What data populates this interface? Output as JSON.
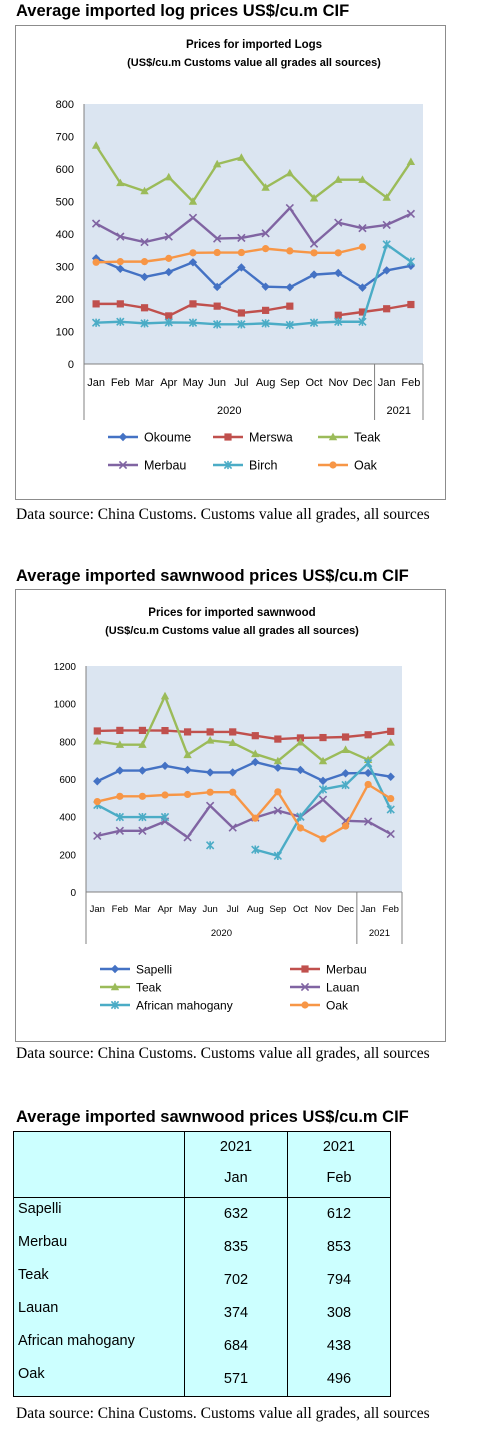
{
  "sections": [
    {
      "heading": "Average imported log prices US$/cu.m CIF",
      "source": "Data source: China Customs. Customs value all grades, all sources"
    },
    {
      "heading": "Average imported sawnwood prices US$/cu.m CIF",
      "source": "Data source: China Customs. Customs value all grades, all sources"
    },
    {
      "heading": "Average imported sawnwood prices US$/cu.m CIF",
      "source": "Data source: China Customs. Customs value all grades, all sources"
    }
  ],
  "chart_data": [
    {
      "type": "line",
      "title": "Prices for imported Logs",
      "subtitle": "(US$/cu.m Customs value all grades all sources)",
      "categories": [
        "Jan",
        "Feb",
        "Mar",
        "Apr",
        "May",
        "Jun",
        "Jul",
        "Aug",
        "Sep",
        "Oct",
        "Nov",
        "Dec",
        "Jan",
        "Feb"
      ],
      "year_groups": [
        {
          "label": "2020",
          "count": 12
        },
        {
          "label": "2021",
          "count": 2
        }
      ],
      "ylim": [
        0,
        800
      ],
      "yticks": [
        "0",
        "100",
        "200",
        "300",
        "400",
        "500",
        "600",
        "700",
        "800"
      ],
      "grid": false,
      "legend_position": "bottom",
      "legend_columns": 3,
      "series": [
        {
          "name": "Okoume",
          "color": "#4472c4",
          "marker": "diamond",
          "values": [
            325,
            293,
            268,
            283,
            313,
            237,
            297,
            238,
            236,
            275,
            280,
            235,
            288,
            302
          ]
        },
        {
          "name": "Merswa",
          "color": "#c0504d",
          "marker": "square",
          "values": [
            185,
            185,
            173,
            148,
            185,
            178,
            157,
            165,
            178,
            null,
            150,
            160,
            170,
            183
          ]
        },
        {
          "name": "Teak",
          "color": "#9bbb59",
          "marker": "triangle",
          "values": [
            672,
            557,
            532,
            575,
            500,
            615,
            635,
            543,
            587,
            510,
            567,
            567,
            512,
            622
          ]
        },
        {
          "name": "Merbau",
          "color": "#8064a2",
          "marker": "x",
          "values": [
            432,
            392,
            375,
            392,
            450,
            386,
            388,
            402,
            480,
            370,
            435,
            418,
            428,
            462
          ]
        },
        {
          "name": "Birch",
          "color": "#4bacc6",
          "marker": "star",
          "values": [
            127,
            130,
            125,
            128,
            127,
            122,
            122,
            125,
            120,
            127,
            130,
            130,
            368,
            315
          ]
        },
        {
          "name": "Oak",
          "color": "#f79646",
          "marker": "circle",
          "values": [
            313,
            315,
            315,
            325,
            342,
            343,
            343,
            355,
            348,
            342,
            342,
            360,
            null,
            null
          ]
        }
      ]
    },
    {
      "type": "line",
      "title": "Prices for imported sawnwood",
      "subtitle": "(US$/cu.m Customs value all grades all sources)",
      "categories": [
        "Jan",
        "Feb",
        "Mar",
        "Apr",
        "May",
        "Jun",
        "Jul",
        "Aug",
        "Sep",
        "Oct",
        "Nov",
        "Dec",
        "Jan",
        "Feb"
      ],
      "year_groups": [
        {
          "label": "2020",
          "count": 12
        },
        {
          "label": "2021",
          "count": 2
        }
      ],
      "ylim": [
        0,
        1200
      ],
      "yticks": [
        "0",
        "200",
        "400",
        "600",
        "800",
        "1000",
        "1200"
      ],
      "grid": false,
      "legend_position": "bottom",
      "legend_columns": 2,
      "series": [
        {
          "name": "Sapelli",
          "color": "#4472c4",
          "marker": "diamond",
          "values": [
            588,
            645,
            645,
            670,
            648,
            635,
            635,
            690,
            660,
            648,
            590,
            630,
            632,
            612
          ]
        },
        {
          "name": "Merbau",
          "color": "#c0504d",
          "marker": "square",
          "values": [
            855,
            858,
            858,
            857,
            850,
            850,
            850,
            830,
            812,
            818,
            820,
            823,
            835,
            853
          ]
        },
        {
          "name": "Teak",
          "color": "#9bbb59",
          "marker": "triangle",
          "values": [
            800,
            782,
            782,
            1040,
            728,
            805,
            792,
            733,
            695,
            795,
            695,
            755,
            702,
            794
          ]
        },
        {
          "name": "Lauan",
          "color": "#8064a2",
          "marker": "x",
          "values": [
            298,
            325,
            325,
            375,
            290,
            458,
            342,
            395,
            432,
            400,
            490,
            378,
            374,
            308
          ]
        },
        {
          "name": "African mahogany",
          "color": "#4bacc6",
          "marker": "star",
          "values": [
            462,
            398,
            398,
            398,
            null,
            248,
            null,
            225,
            192,
            400,
            545,
            568,
            684,
            438
          ]
        },
        {
          "name": "Oak",
          "color": "#f79646",
          "marker": "circle",
          "values": [
            480,
            508,
            508,
            515,
            518,
            530,
            530,
            392,
            532,
            340,
            282,
            350,
            571,
            496
          ]
        }
      ]
    },
    {
      "type": "table",
      "columns": [
        {
          "year": "2021",
          "month": "Jan"
        },
        {
          "year": "2021",
          "month": "Feb"
        }
      ],
      "rows": [
        {
          "name": "Sapelli",
          "jan": "632",
          "feb": "612"
        },
        {
          "name": "Merbau",
          "jan": "835",
          "feb": "853"
        },
        {
          "name": "Teak",
          "jan": "702",
          "feb": "794"
        },
        {
          "name": "Lauan",
          "jan": "374",
          "feb": "308"
        },
        {
          "name": "African mahogany",
          "jan": "684",
          "feb": "438"
        },
        {
          "name": "Oak",
          "jan": "571",
          "feb": "496"
        }
      ]
    }
  ]
}
